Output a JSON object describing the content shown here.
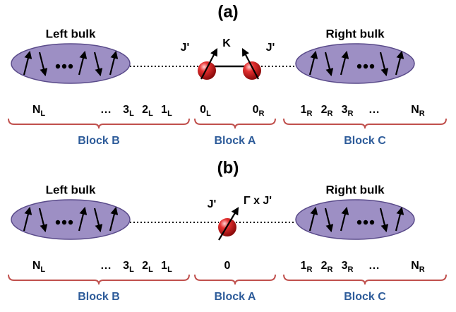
{
  "panels": [
    {
      "label": "(a)",
      "left_bulk": "Left bulk",
      "right_bulk": "Right bulk",
      "couplings": [
        "J'",
        "J'"
      ],
      "center_label": "K",
      "sites": [
        {
          "text": "N",
          "sub": "L"
        },
        {
          "text": "…"
        },
        {
          "text": "3",
          "sub": "L"
        },
        {
          "text": "2",
          "sub": "L"
        },
        {
          "text": "1",
          "sub": "L"
        },
        {
          "text": "0",
          "sub": "L"
        },
        {
          "text": "0",
          "sub": "R"
        },
        {
          "text": "1",
          "sub": "R"
        },
        {
          "text": "2",
          "sub": "R"
        },
        {
          "text": "3",
          "sub": "R"
        },
        {
          "text": "…"
        },
        {
          "text": "N",
          "sub": "R"
        }
      ],
      "blocks": [
        "Block B",
        "Block A",
        "Block C"
      ]
    },
    {
      "label": "(b)",
      "left_bulk": "Left bulk",
      "right_bulk": "Right bulk",
      "couplings": [
        "J'",
        "Γ x J'"
      ],
      "sites": [
        {
          "text": "N",
          "sub": "L"
        },
        {
          "text": "…"
        },
        {
          "text": "3",
          "sub": "L"
        },
        {
          "text": "2",
          "sub": "L"
        },
        {
          "text": "1",
          "sub": "L"
        },
        {
          "text": "0"
        },
        {
          "text": "1",
          "sub": "R"
        },
        {
          "text": "2",
          "sub": "R"
        },
        {
          "text": "3",
          "sub": "R"
        },
        {
          "text": "…"
        },
        {
          "text": "N",
          "sub": "R"
        }
      ],
      "blocks": [
        "Block B",
        "Block A",
        "Block C"
      ]
    }
  ]
}
